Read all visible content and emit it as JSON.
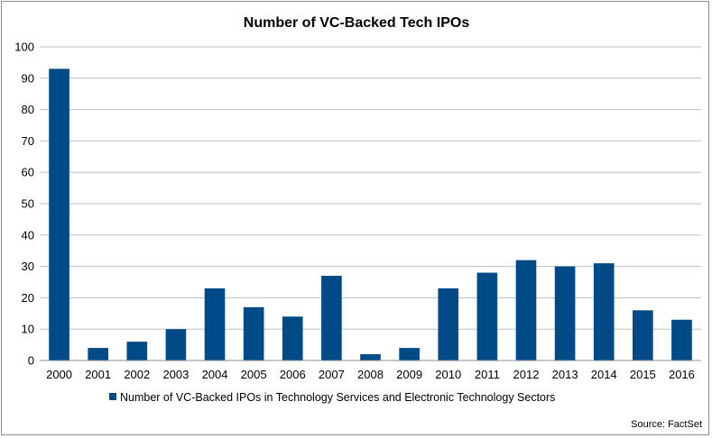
{
  "chart_data": {
    "type": "bar",
    "title": "Number of VC-Backed Tech IPOs",
    "categories": [
      "2000",
      "2001",
      "2002",
      "2003",
      "2004",
      "2005",
      "2006",
      "2007",
      "2008",
      "2009",
      "2010",
      "2011",
      "2012",
      "2013",
      "2014",
      "2015",
      "2016"
    ],
    "series": [
      {
        "name": "Number of VC-Backed IPOs in Technology Services and Electronic Technology Sectors",
        "values": [
          93,
          4,
          6,
          10,
          23,
          17,
          14,
          27,
          2,
          4,
          23,
          28,
          32,
          30,
          31,
          16,
          13
        ],
        "color": "#004a87"
      }
    ],
    "ylim": [
      0,
      100
    ],
    "yticks": [
      0,
      10,
      20,
      30,
      40,
      50,
      60,
      70,
      80,
      90,
      100
    ],
    "grid": true,
    "legend_position": "bottom",
    "xlabel": "",
    "ylabel": ""
  },
  "source": "Source: FactSet",
  "colors": {
    "bar": "#004a87",
    "grid": "#bfbfbf",
    "axis": "#8c8c8c"
  }
}
